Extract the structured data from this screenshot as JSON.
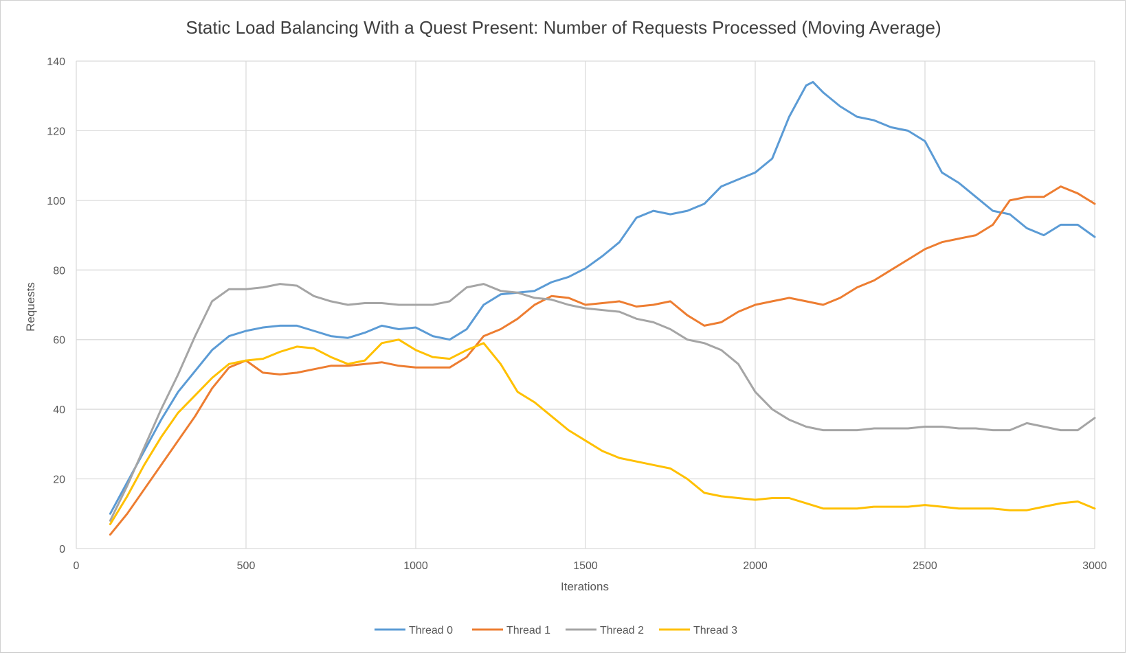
{
  "chart_data": {
    "type": "line",
    "title": "Static Load Balancing With a Quest Present: Number of Requests Processed (Moving Average)",
    "xlabel": "Iterations",
    "ylabel": "Requests",
    "xlim": [
      0,
      3000
    ],
    "ylim": [
      0,
      140
    ],
    "xticks": [
      0,
      500,
      1000,
      1500,
      2000,
      2500,
      3000
    ],
    "yticks": [
      0,
      20,
      40,
      60,
      80,
      100,
      120,
      140
    ],
    "grid": true,
    "legend_position": "bottom",
    "series": [
      {
        "name": "Thread 0",
        "color": "#5b9bd5",
        "x": [
          100,
          150,
          200,
          250,
          300,
          350,
          400,
          450,
          500,
          550,
          600,
          650,
          700,
          750,
          800,
          850,
          900,
          950,
          1000,
          1050,
          1100,
          1150,
          1200,
          1250,
          1300,
          1350,
          1400,
          1450,
          1500,
          1550,
          1600,
          1650,
          1700,
          1750,
          1800,
          1850,
          1900,
          1950,
          2000,
          2050,
          2100,
          2150,
          2170,
          2200,
          2250,
          2300,
          2350,
          2400,
          2450,
          2500,
          2550,
          2600,
          2650,
          2700,
          2750,
          2800,
          2850,
          2900,
          2950,
          3000
        ],
        "y": [
          10,
          19,
          28,
          37,
          45,
          51,
          57,
          61,
          62.5,
          63.5,
          64,
          64,
          62.5,
          61,
          60.5,
          62,
          64,
          63,
          63.5,
          61,
          60,
          63,
          70,
          73,
          73.5,
          74,
          76.5,
          78,
          80.5,
          84,
          88,
          95,
          97,
          96,
          97,
          99,
          104,
          106,
          108,
          112,
          124,
          133,
          134,
          131,
          127,
          124,
          123,
          121,
          120,
          117,
          108,
          105,
          101,
          97,
          96,
          92,
          90,
          93,
          93,
          89.5
        ]
      },
      {
        "name": "Thread 1",
        "color": "#ed7d31",
        "x": [
          100,
          150,
          200,
          250,
          300,
          350,
          400,
          450,
          500,
          550,
          600,
          650,
          700,
          750,
          800,
          850,
          900,
          950,
          1000,
          1050,
          1100,
          1150,
          1200,
          1250,
          1300,
          1350,
          1400,
          1450,
          1500,
          1550,
          1600,
          1650,
          1700,
          1750,
          1800,
          1850,
          1900,
          1950,
          2000,
          2050,
          2100,
          2150,
          2200,
          2250,
          2300,
          2350,
          2400,
          2450,
          2500,
          2550,
          2600,
          2650,
          2700,
          2750,
          2800,
          2850,
          2900,
          2950,
          3000
        ],
        "y": [
          4,
          10,
          17,
          24,
          31,
          38,
          46,
          52,
          54,
          50.5,
          50,
          50.5,
          51.5,
          52.5,
          52.5,
          53,
          53.5,
          52.5,
          52,
          52,
          52,
          55,
          61,
          63,
          66,
          70,
          72.5,
          72,
          70,
          70.5,
          71,
          69.5,
          70,
          71,
          67,
          64,
          65,
          68,
          70,
          71,
          72,
          71,
          70,
          72,
          75,
          77,
          80,
          83,
          86,
          88,
          89,
          90,
          93,
          100,
          101,
          101,
          104,
          102,
          99
        ]
      },
      {
        "name": "Thread 2",
        "color": "#a5a5a5",
        "x": [
          100,
          150,
          200,
          250,
          300,
          350,
          400,
          450,
          500,
          550,
          600,
          650,
          700,
          750,
          800,
          850,
          900,
          950,
          1000,
          1050,
          1100,
          1150,
          1200,
          1250,
          1300,
          1350,
          1400,
          1450,
          1500,
          1550,
          1600,
          1650,
          1700,
          1750,
          1800,
          1850,
          1900,
          1950,
          2000,
          2050,
          2100,
          2150,
          2200,
          2250,
          2300,
          2350,
          2400,
          2450,
          2500,
          2550,
          2600,
          2650,
          2700,
          2750,
          2800,
          2850,
          2900,
          2950,
          3000
        ],
        "y": [
          8,
          18,
          29,
          40,
          50,
          61,
          71,
          74.5,
          74.5,
          75,
          76,
          75.5,
          72.5,
          71,
          70,
          70.5,
          70.5,
          70,
          70,
          70,
          71,
          75,
          76,
          74,
          73.5,
          72,
          71.5,
          70,
          69,
          68.5,
          68,
          66,
          65,
          63,
          60,
          59,
          57,
          53,
          45,
          40,
          37,
          35,
          34,
          34,
          34,
          34.5,
          34.5,
          34.5,
          35,
          35,
          34.5,
          34.5,
          34,
          34,
          36,
          35,
          34,
          34,
          37.5
        ]
      },
      {
        "name": "Thread 3",
        "color": "#ffc000",
        "x": [
          100,
          150,
          200,
          250,
          300,
          350,
          400,
          450,
          500,
          550,
          600,
          650,
          700,
          750,
          800,
          850,
          900,
          950,
          1000,
          1050,
          1100,
          1150,
          1200,
          1250,
          1300,
          1350,
          1400,
          1450,
          1500,
          1550,
          1600,
          1650,
          1700,
          1750,
          1800,
          1850,
          1900,
          1950,
          2000,
          2050,
          2100,
          2150,
          2200,
          2250,
          2300,
          2350,
          2400,
          2450,
          2500,
          2550,
          2600,
          2650,
          2700,
          2750,
          2800,
          2850,
          2900,
          2950,
          3000
        ],
        "y": [
          7,
          15,
          24,
          32,
          39,
          44,
          49,
          53,
          54,
          54.5,
          56.5,
          58,
          57.5,
          55,
          53,
          54,
          59,
          60,
          57,
          55,
          54.5,
          57,
          59,
          53,
          45,
          42,
          38,
          34,
          31,
          28,
          26,
          25,
          24,
          23,
          20,
          16,
          15,
          14.5,
          14,
          14.5,
          14.5,
          13,
          11.5,
          11.5,
          11.5,
          12,
          12,
          12,
          12.5,
          12,
          11.5,
          11.5,
          11.5,
          11,
          11,
          12,
          13,
          13.5,
          11.5
        ]
      }
    ]
  }
}
